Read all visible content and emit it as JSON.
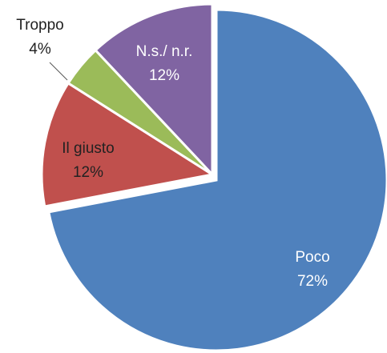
{
  "chart_data": {
    "type": "pie",
    "categories": [
      "Poco",
      "Il giusto",
      "Troppo",
      "N.s./ n.r."
    ],
    "values": [
      72,
      12,
      4,
      12
    ],
    "value_labels": [
      "72%",
      "12%",
      "4%",
      "12%"
    ],
    "colors": [
      "#4f81bd",
      "#c0504d",
      "#9bbb59",
      "#8064a2"
    ]
  }
}
